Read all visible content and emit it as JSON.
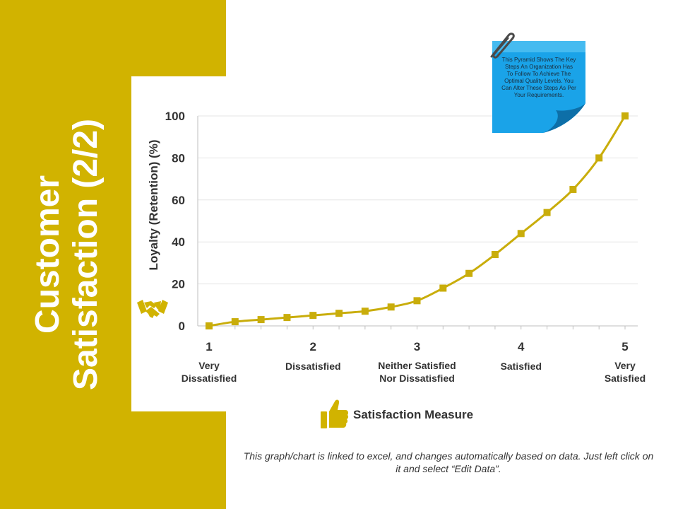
{
  "title": "Customer\nSatisfaction (2/2)",
  "sticky_note": "This Pyramid Shows The Key Steps An Organization Has To Follow To Achieve The Optimal Quality Levels. You Can Alter These Steps As Per Your Requirements.",
  "footer_note": "This graph/chart is linked to excel, and changes automatically based on data. Just left click on it and select “Edit Data”.",
  "colors": {
    "accent": "#d1b300",
    "line": "#c9ad0b",
    "sticky": "#1aa3e8"
  },
  "icons": {
    "y_axis": "handshake-icon",
    "x_axis": "thumbs-up-icon",
    "note": "paperclip-icon"
  },
  "chart_data": {
    "type": "line",
    "ylabel": "Loyalty (Retention) (%)",
    "xlabel": "Satisfaction Measure",
    "ylim": [
      0,
      100
    ],
    "xlim": [
      1,
      5
    ],
    "yticks": [
      0,
      20,
      40,
      60,
      80,
      100
    ],
    "xticks": [
      1,
      2,
      3,
      4,
      5
    ],
    "categories": [
      "Very\nDissatisfied",
      "Dissatisfied",
      "Neither Satisfied\nNor Dissatisfied",
      "Satisfied",
      "Very\nSatisfied"
    ],
    "grid": true,
    "series": [
      {
        "x": [
          1,
          1.25,
          1.5,
          1.75,
          2,
          2.25,
          2.5,
          2.75,
          3,
          3.25,
          3.5,
          3.75,
          4,
          4.25,
          4.5,
          4.75,
          5
        ],
        "values": [
          0,
          2,
          3,
          4,
          5,
          6,
          7,
          9,
          12,
          18,
          25,
          34,
          44,
          54,
          65,
          80,
          100
        ]
      }
    ]
  }
}
